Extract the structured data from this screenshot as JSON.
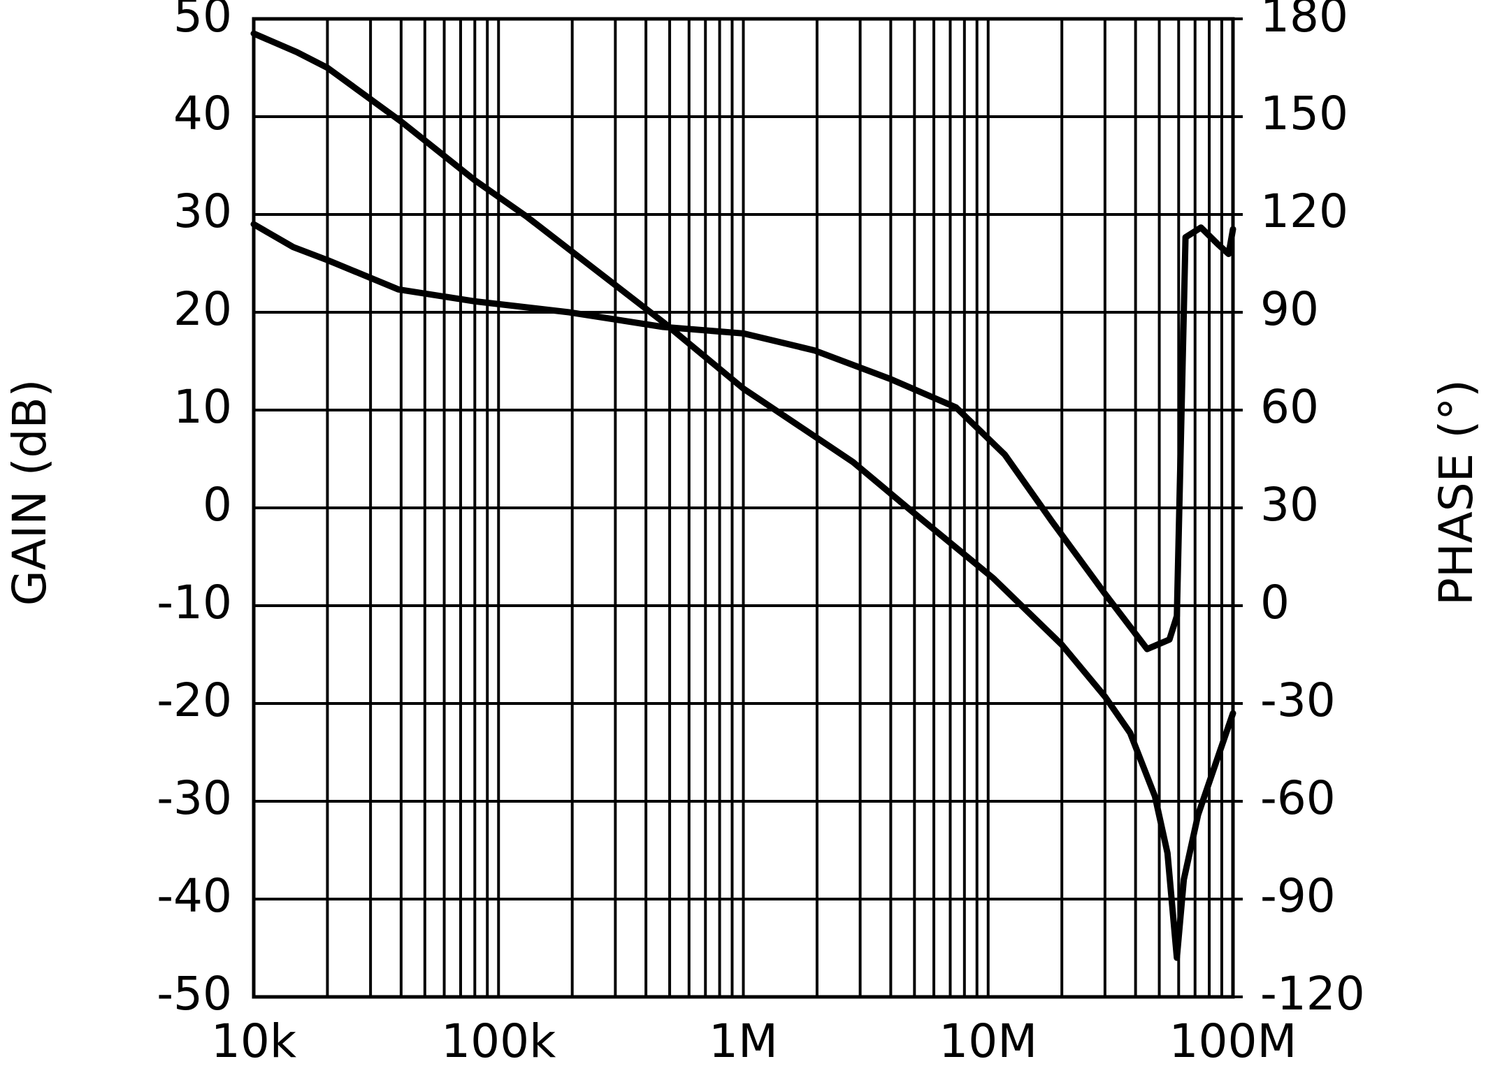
{
  "chart_data": {
    "type": "line",
    "y_label": "GAIN (dB)",
    "y2_label": "PHASE (°)",
    "xscale": "log",
    "grid": true,
    "xlim": [
      10000,
      100000000
    ],
    "xticks": [
      {
        "value": 10000,
        "label": "10k"
      },
      {
        "value": 100000,
        "label": "100k"
      },
      {
        "value": 1000000,
        "label": "1M"
      },
      {
        "value": 10000000,
        "label": "10M"
      },
      {
        "value": 100000000,
        "label": "100M"
      }
    ],
    "ylim": [
      -50,
      50
    ],
    "yticks": [
      -50,
      -40,
      -30,
      -20,
      -10,
      0,
      10,
      20,
      30,
      40,
      50
    ],
    "y2lim": [
      -120,
      180
    ],
    "y2ticks": [
      -120,
      -90,
      -60,
      -30,
      0,
      30,
      60,
      90,
      120,
      150,
      180
    ],
    "series": [
      {
        "color": "#000000",
        "x": [
          10000,
          15000,
          20000,
          40000,
          80000,
          130000,
          470000,
          1000000,
          2800000,
          4800000,
          10500000,
          20000000,
          30000000,
          38000000,
          48000000,
          54000000,
          59000000,
          63000000,
          72000000,
          84000000,
          100000000
        ],
        "values": [
          48.5,
          46.6,
          45,
          39.5,
          33.5,
          29.8,
          19,
          12.2,
          4.7,
          -0.2,
          -7.2,
          -14,
          -19.3,
          -23,
          -29.5,
          -35.3,
          -46,
          -38,
          -31.4,
          -26.5,
          -21
        ]
      },
      {
        "color": "#000000",
        "axis": "y2",
        "x": [
          10000,
          14500,
          20000,
          39000,
          79000,
          194000,
          470000,
          1000000,
          1950000,
          4000000,
          7400000,
          11700000,
          18200000,
          29700000,
          44600000,
          55000000,
          59000000,
          64000000,
          74000000,
          87000000,
          96000000,
          100000000
        ],
        "values": [
          117,
          110,
          106,
          97,
          93.4,
          90,
          85.5,
          83.5,
          78.3,
          69.5,
          60.8,
          46.3,
          25.9,
          4.1,
          -13.3,
          -10.4,
          -3.2,
          113,
          116,
          110.8,
          107.9,
          115.5
        ]
      }
    ]
  }
}
